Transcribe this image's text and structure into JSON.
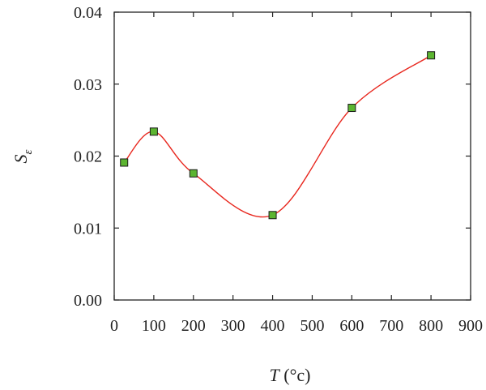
{
  "chart_data": {
    "type": "scatter",
    "xlabel": {
      "var": "T",
      "unit": " (°c)"
    },
    "ylabel": {
      "base": "S",
      "sub": "ε"
    },
    "xlim": [
      0,
      900
    ],
    "ylim": [
      0,
      0.04
    ],
    "xticks": [
      "0",
      "100",
      "200",
      "300",
      "400",
      "500",
      "600",
      "700",
      "800",
      "900"
    ],
    "xtick_values": [
      0,
      100,
      200,
      300,
      400,
      500,
      600,
      700,
      800,
      900
    ],
    "yticks": [
      "0.00",
      "0.01",
      "0.02",
      "0.03",
      "0.04"
    ],
    "ytick_values": [
      0,
      0.01,
      0.02,
      0.03,
      0.04
    ],
    "series": [
      {
        "x": [
          25,
          100,
          200,
          400,
          600,
          800
        ],
        "y": [
          0.0191,
          0.0234,
          0.0176,
          0.0118,
          0.0267,
          0.034
        ],
        "marker_color": "#5cb531",
        "line_color": "#e8271e"
      }
    ],
    "grid": false,
    "legend": "none"
  }
}
